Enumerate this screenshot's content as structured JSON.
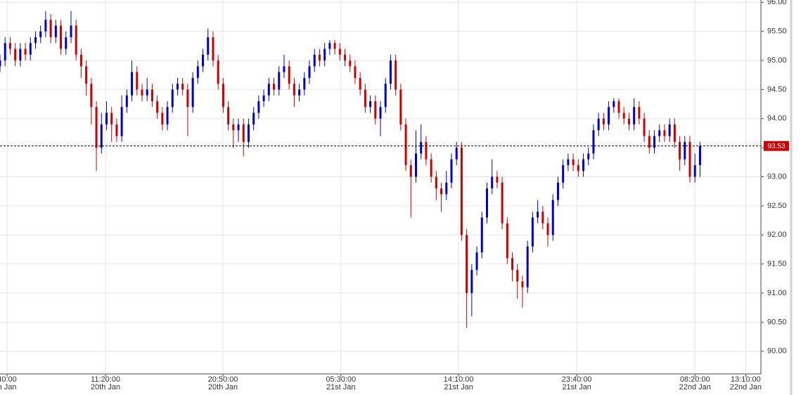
{
  "chart_data": {
    "type": "candlestick",
    "ohlc_order": [
      "open",
      "high",
      "low",
      "close"
    ],
    "up_color": "#0000cc",
    "down_color": "#cc0000",
    "ylim": [
      89.61,
      96.04
    ],
    "yticks": [
      {
        "value": 90,
        "label": "90.00"
      },
      {
        "value": 90.5,
        "label": "90.50"
      },
      {
        "value": 91,
        "label": "91.00"
      },
      {
        "value": 91.5,
        "label": "91.50"
      },
      {
        "value": 92,
        "label": "92.00"
      },
      {
        "value": 92.5,
        "label": "92.50"
      },
      {
        "value": 93,
        "label": "93.00"
      },
      {
        "value": 93.5,
        "label": "93.50"
      },
      {
        "value": 94,
        "label": "94.00"
      },
      {
        "value": 94.5,
        "label": "94.50"
      },
      {
        "value": 95,
        "label": "95.00"
      },
      {
        "value": 95.5,
        "label": "95.50"
      },
      {
        "value": 96,
        "label": "96.00"
      }
    ],
    "xlim": [
      0,
      150
    ],
    "xticks": [
      {
        "value": 1.39,
        "label": "40:00"
      },
      {
        "value": 20.8,
        "label": "11:20:00"
      },
      {
        "value": 43.95,
        "label": "20:50:00"
      },
      {
        "value": 67.2,
        "label": "05:30:00"
      },
      {
        "value": 90.4,
        "label": "14:10:00"
      },
      {
        "value": 113.7,
        "label": "23:40:00"
      },
      {
        "value": 137.0,
        "label": "08:20:00"
      },
      {
        "value": 147.0,
        "label": "13:10:00"
      }
    ],
    "xtick_dates": [
      "h Jan",
      "20th Jan",
      "20th Jan",
      "21st Jan",
      "21st Jan",
      "21st Jan",
      "22nd Jan",
      "22nd Jan"
    ],
    "grid": true,
    "last_price": 93.53,
    "last_price_color": "#cc0000",
    "candles": [
      [
        94.9,
        95.1,
        94.8,
        95.0
      ],
      [
        95.0,
        95.4,
        94.9,
        95.3
      ],
      [
        95.3,
        95.4,
        95.1,
        95.2
      ],
      [
        95.2,
        95.3,
        94.9,
        95.0
      ],
      [
        95.0,
        95.3,
        94.9,
        95.2
      ],
      [
        95.2,
        95.3,
        95.0,
        95.1
      ],
      [
        95.1,
        95.4,
        95.0,
        95.3
      ],
      [
        95.3,
        95.5,
        95.2,
        95.4
      ],
      [
        95.4,
        95.6,
        95.3,
        95.5
      ],
      [
        95.5,
        95.85,
        95.4,
        95.7
      ],
      [
        95.7,
        95.8,
        95.3,
        95.4
      ],
      [
        95.4,
        95.7,
        95.3,
        95.6
      ],
      [
        95.6,
        95.7,
        95.1,
        95.2
      ],
      [
        95.2,
        95.5,
        95.1,
        95.4
      ],
      [
        95.4,
        95.85,
        95.3,
        95.6
      ],
      [
        95.6,
        95.7,
        95.0,
        95.1
      ],
      [
        95.1,
        95.2,
        94.7,
        94.9
      ],
      [
        94.9,
        95.0,
        94.4,
        94.6
      ],
      [
        94.6,
        94.7,
        93.9,
        94.2
      ],
      [
        94.2,
        94.3,
        93.1,
        93.5
      ],
      [
        93.5,
        94.1,
        93.4,
        93.9
      ],
      [
        93.9,
        94.3,
        93.8,
        94.1
      ],
      [
        94.1,
        94.2,
        93.6,
        93.9
      ],
      [
        93.9,
        94.0,
        93.6,
        93.7
      ],
      [
        93.7,
        94.4,
        93.6,
        94.2
      ],
      [
        94.2,
        94.5,
        94.1,
        94.4
      ],
      [
        94.4,
        95.0,
        94.3,
        94.8
      ],
      [
        94.8,
        94.9,
        94.4,
        94.5
      ],
      [
        94.5,
        94.6,
        94.3,
        94.4
      ],
      [
        94.4,
        94.7,
        94.3,
        94.5
      ],
      [
        94.5,
        94.6,
        94.2,
        94.3
      ],
      [
        94.3,
        94.4,
        94.0,
        94.1
      ],
      [
        94.1,
        94.2,
        93.8,
        93.9
      ],
      [
        93.9,
        94.3,
        93.8,
        94.2
      ],
      [
        94.2,
        94.6,
        94.1,
        94.5
      ],
      [
        94.5,
        94.7,
        94.4,
        94.6
      ],
      [
        94.6,
        94.7,
        94.4,
        94.5
      ],
      [
        94.5,
        94.6,
        93.7,
        94.2
      ],
      [
        94.2,
        94.8,
        94.1,
        94.7
      ],
      [
        94.7,
        95.0,
        94.6,
        94.9
      ],
      [
        94.9,
        95.2,
        94.8,
        95.1
      ],
      [
        95.1,
        95.55,
        95.0,
        95.4
      ],
      [
        95.4,
        95.5,
        94.9,
        95.0
      ],
      [
        95.0,
        95.1,
        94.5,
        94.6
      ],
      [
        94.6,
        94.7,
        94.1,
        94.2
      ],
      [
        94.2,
        94.3,
        93.8,
        93.9
      ],
      [
        93.9,
        94.0,
        93.5,
        93.8
      ],
      [
        93.8,
        94.0,
        93.6,
        93.9
      ],
      [
        93.9,
        94.0,
        93.35,
        93.6
      ],
      [
        93.6,
        94.0,
        93.5,
        93.9
      ],
      [
        93.9,
        94.2,
        93.8,
        94.1
      ],
      [
        94.1,
        94.4,
        94.0,
        94.3
      ],
      [
        94.3,
        94.5,
        94.2,
        94.4
      ],
      [
        94.4,
        94.7,
        94.3,
        94.6
      ],
      [
        94.6,
        94.7,
        94.4,
        94.5
      ],
      [
        94.5,
        94.9,
        94.4,
        94.8
      ],
      [
        94.8,
        95.1,
        94.7,
        94.9
      ],
      [
        94.9,
        95.0,
        94.5,
        94.6
      ],
      [
        94.6,
        94.7,
        94.2,
        94.4
      ],
      [
        94.4,
        94.6,
        94.3,
        94.5
      ],
      [
        94.5,
        94.8,
        94.4,
        94.7
      ],
      [
        94.7,
        95.0,
        94.6,
        94.9
      ],
      [
        94.9,
        95.2,
        94.8,
        95.1
      ],
      [
        95.1,
        95.2,
        94.9,
        95.0
      ],
      [
        95.0,
        95.3,
        94.9,
        95.2
      ],
      [
        95.2,
        95.35,
        95.1,
        95.3
      ],
      [
        95.3,
        95.35,
        95.1,
        95.2
      ],
      [
        95.2,
        95.3,
        95.0,
        95.1
      ],
      [
        95.1,
        95.2,
        94.9,
        95.0
      ],
      [
        95.0,
        95.1,
        94.8,
        94.9
      ],
      [
        94.9,
        95.0,
        94.6,
        94.7
      ],
      [
        94.7,
        94.8,
        94.4,
        94.5
      ],
      [
        94.5,
        94.6,
        94.1,
        94.2
      ],
      [
        94.2,
        94.4,
        94.1,
        94.3
      ],
      [
        94.3,
        94.4,
        93.9,
        94.0
      ],
      [
        94.0,
        94.3,
        93.7,
        94.2
      ],
      [
        94.2,
        94.7,
        94.1,
        94.6
      ],
      [
        94.6,
        95.1,
        94.5,
        95.0
      ],
      [
        95.0,
        95.1,
        94.4,
        94.5
      ],
      [
        94.5,
        94.6,
        93.8,
        93.9
      ],
      [
        93.9,
        94.0,
        93.1,
        93.2
      ],
      [
        93.2,
        93.3,
        92.3,
        93.0
      ],
      [
        93.0,
        93.8,
        92.9,
        93.4
      ],
      [
        93.4,
        93.9,
        93.3,
        93.6
      ],
      [
        93.6,
        93.7,
        93.2,
        93.3
      ],
      [
        93.3,
        93.4,
        92.9,
        93.0
      ],
      [
        93.0,
        93.1,
        92.6,
        92.8
      ],
      [
        92.8,
        92.9,
        92.4,
        92.7
      ],
      [
        92.7,
        93.1,
        92.6,
        92.9
      ],
      [
        92.9,
        93.4,
        92.8,
        93.3
      ],
      [
        93.3,
        93.6,
        93.2,
        93.5
      ],
      [
        93.5,
        93.6,
        91.9,
        92.0
      ],
      [
        92.0,
        92.1,
        90.4,
        91.0
      ],
      [
        91.0,
        91.5,
        90.6,
        91.4
      ],
      [
        91.4,
        91.8,
        91.3,
        91.7
      ],
      [
        91.7,
        92.4,
        91.6,
        92.3
      ],
      [
        92.3,
        92.9,
        92.2,
        92.8
      ],
      [
        92.8,
        93.3,
        92.7,
        93.0
      ],
      [
        93.0,
        93.1,
        92.8,
        92.9
      ],
      [
        92.9,
        93.0,
        92.1,
        92.2
      ],
      [
        92.2,
        92.3,
        91.5,
        91.6
      ],
      [
        91.6,
        91.7,
        91.2,
        91.4
      ],
      [
        91.4,
        91.5,
        90.9,
        91.2
      ],
      [
        91.2,
        91.3,
        90.75,
        91.1
      ],
      [
        91.1,
        91.9,
        91.0,
        91.8
      ],
      [
        91.8,
        92.4,
        91.7,
        92.3
      ],
      [
        92.3,
        92.6,
        92.2,
        92.4
      ],
      [
        92.4,
        92.5,
        92.1,
        92.2
      ],
      [
        92.2,
        92.3,
        91.8,
        92.0
      ],
      [
        92.0,
        92.7,
        91.9,
        92.6
      ],
      [
        92.6,
        93.0,
        92.5,
        92.9
      ],
      [
        92.9,
        93.3,
        92.8,
        93.2
      ],
      [
        93.2,
        93.4,
        93.1,
        93.3
      ],
      [
        93.3,
        93.4,
        93.1,
        93.2
      ],
      [
        93.2,
        93.3,
        93.0,
        93.1
      ],
      [
        93.1,
        93.4,
        93.0,
        93.3
      ],
      [
        93.3,
        93.5,
        93.2,
        93.4
      ],
      [
        93.4,
        93.9,
        93.3,
        93.8
      ],
      [
        93.8,
        94.1,
        93.7,
        94.0
      ],
      [
        94.0,
        94.1,
        93.8,
        93.9
      ],
      [
        93.9,
        94.3,
        93.8,
        94.2
      ],
      [
        94.2,
        94.35,
        94.1,
        94.3
      ],
      [
        94.3,
        94.35,
        94.0,
        94.1
      ],
      [
        94.1,
        94.2,
        93.9,
        94.0
      ],
      [
        94.0,
        94.1,
        93.8,
        93.9
      ],
      [
        93.9,
        94.35,
        93.8,
        94.2
      ],
      [
        94.2,
        94.3,
        93.9,
        94.0
      ],
      [
        94.0,
        94.1,
        93.6,
        93.7
      ],
      [
        93.7,
        93.8,
        93.4,
        93.5
      ],
      [
        93.5,
        93.8,
        93.4,
        93.7
      ],
      [
        93.7,
        93.9,
        93.6,
        93.8
      ],
      [
        93.8,
        93.9,
        93.6,
        93.7
      ],
      [
        93.7,
        94.0,
        93.6,
        93.9
      ],
      [
        93.9,
        94.0,
        93.5,
        93.6
      ],
      [
        93.6,
        93.7,
        93.1,
        93.3
      ],
      [
        93.3,
        93.7,
        93.2,
        93.6
      ],
      [
        93.6,
        93.7,
        92.9,
        93.0
      ],
      [
        93.0,
        93.4,
        92.9,
        93.2
      ],
      [
        93.2,
        93.6,
        93.0,
        93.53
      ]
    ]
  }
}
